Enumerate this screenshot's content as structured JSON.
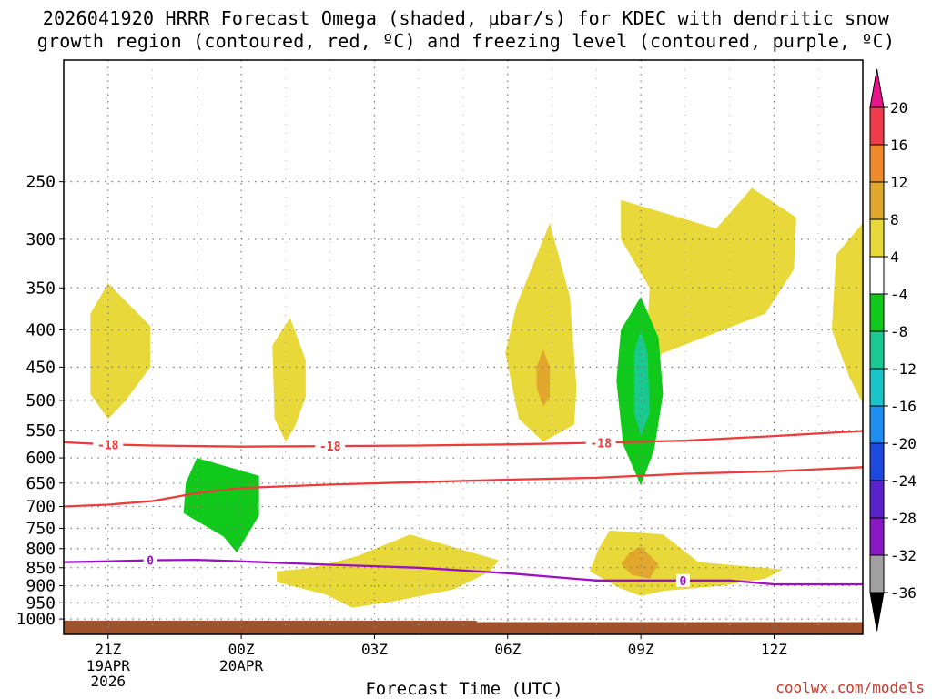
{
  "chart_data": {
    "type": "contour-timeheight",
    "title_line1": "2026041920 HRRR Forecast Omega (shaded, μbar/s) for KDEC with dendritic snow",
    "title_line2": "growth region (contoured, red, ºC) and freezing level (contoured, purple, ºC)",
    "xlabel": "Forecast Time (UTC)",
    "credit": "coolwx.com/models",
    "x_ticks": [
      {
        "hour": 1,
        "label": "21Z",
        "sub": [
          "19APR",
          "2026"
        ]
      },
      {
        "hour": 4,
        "label": "00Z",
        "sub": [
          "20APR"
        ]
      },
      {
        "hour": 7,
        "label": "03Z",
        "sub": []
      },
      {
        "hour": 10,
        "label": "06Z",
        "sub": []
      },
      {
        "hour": 13,
        "label": "09Z",
        "sub": []
      },
      {
        "hour": 16,
        "label": "12Z",
        "sub": []
      }
    ],
    "xlim": [
      0,
      18
    ],
    "y_ticks": [
      250,
      300,
      350,
      400,
      450,
      500,
      550,
      600,
      650,
      700,
      750,
      800,
      850,
      900,
      950,
      1000
    ],
    "ylim": [
      1050,
      170
    ],
    "colorbar": {
      "labels": [
        "20",
        "16",
        "12",
        "8",
        "4",
        "-4",
        "-8",
        "-12",
        "-16",
        "-20",
        "-24",
        "-28",
        "-32",
        "-36"
      ],
      "colors": [
        "#f03c4a",
        "#ee8a2c",
        "#e2a82e",
        "#e8d83a",
        "#ffffff",
        "#11c91a",
        "#19c98f",
        "#19c5c8",
        "#1e8ff0",
        "#1e49e0",
        "#5a22cc",
        "#8a16c4",
        "#a0a0a0"
      ],
      "top_arrow": "#e6158a",
      "bottom_arrow": "#000000"
    },
    "shading": [
      {
        "color": "#e8d83a",
        "pts": [
          [
            1,
            345
          ],
          [
            1.95,
            395
          ],
          [
            1.95,
            450
          ],
          [
            1.4,
            500
          ],
          [
            1,
            530
          ],
          [
            0.6,
            490
          ],
          [
            0.6,
            380
          ]
        ]
      },
      {
        "color": "#e8d83a",
        "pts": [
          [
            5.1,
            385
          ],
          [
            5.45,
            440
          ],
          [
            5.45,
            495
          ],
          [
            5.2,
            545
          ],
          [
            5.0,
            570
          ],
          [
            4.75,
            530
          ],
          [
            4.7,
            420
          ]
        ]
      },
      {
        "color": "#e8d83a",
        "pts": [
          [
            10.95,
            285
          ],
          [
            11.4,
            360
          ],
          [
            11.55,
            480
          ],
          [
            11.5,
            540
          ],
          [
            10.8,
            570
          ],
          [
            10.25,
            530
          ],
          [
            9.95,
            430
          ],
          [
            10.2,
            370
          ]
        ]
      },
      {
        "color": "#e2a82e",
        "pts": [
          [
            10.8,
            425
          ],
          [
            10.95,
            450
          ],
          [
            10.95,
            495
          ],
          [
            10.8,
            510
          ],
          [
            10.65,
            480
          ],
          [
            10.65,
            450
          ]
        ]
      },
      {
        "color": "#e8d83a",
        "pts": [
          [
            12.55,
            265
          ],
          [
            14.7,
            290
          ],
          [
            15.5,
            255
          ],
          [
            16.5,
            280
          ],
          [
            16.45,
            330
          ],
          [
            15.8,
            380
          ],
          [
            13.1,
            440
          ],
          [
            13.2,
            350
          ],
          [
            12.55,
            300
          ]
        ]
      },
      {
        "color": "#e8d83a",
        "pts": [
          [
            18,
            285
          ],
          [
            17.4,
            315
          ],
          [
            17.3,
            400
          ],
          [
            17.7,
            465
          ],
          [
            18,
            505
          ]
        ]
      },
      {
        "color": "#11c91a",
        "pts": [
          [
            13,
            360
          ],
          [
            13.4,
            410
          ],
          [
            13.5,
            490
          ],
          [
            13.3,
            585
          ],
          [
            13,
            655
          ],
          [
            12.6,
            575
          ],
          [
            12.45,
            470
          ],
          [
            12.55,
            400
          ]
        ]
      },
      {
        "color": "#19c98f",
        "pts": [
          [
            13,
            400
          ],
          [
            13.15,
            430
          ],
          [
            13.2,
            520
          ],
          [
            13,
            560
          ],
          [
            12.85,
            520
          ],
          [
            12.85,
            430
          ]
        ]
      },
      {
        "color": "#11c91a",
        "pts": [
          [
            3,
            600
          ],
          [
            4.4,
            635
          ],
          [
            4.4,
            720
          ],
          [
            3.9,
            810
          ],
          [
            3.6,
            770
          ],
          [
            2.7,
            715
          ],
          [
            2.75,
            650
          ]
        ]
      },
      {
        "color": "#e8d83a",
        "pts": [
          [
            7.8,
            765
          ],
          [
            9.2,
            810
          ],
          [
            9.8,
            830
          ],
          [
            9.6,
            860
          ],
          [
            8.8,
            910
          ],
          [
            7.45,
            945
          ],
          [
            6.5,
            965
          ],
          [
            5.9,
            925
          ],
          [
            4.8,
            890
          ],
          [
            4.8,
            860
          ],
          [
            5.6,
            850
          ],
          [
            6.6,
            820
          ]
        ]
      },
      {
        "color": "#e8d83a",
        "pts": [
          [
            12.3,
            755
          ],
          [
            13.5,
            765
          ],
          [
            14.3,
            835
          ],
          [
            16.2,
            855
          ],
          [
            15.8,
            880
          ],
          [
            14.8,
            900
          ],
          [
            13.5,
            915
          ],
          [
            13,
            930
          ],
          [
            12.5,
            905
          ],
          [
            11.85,
            860
          ],
          [
            12.05,
            800
          ]
        ]
      },
      {
        "color": "#e2a82e",
        "pts": [
          [
            13,
            795
          ],
          [
            13.4,
            840
          ],
          [
            13.2,
            880
          ],
          [
            12.8,
            870
          ],
          [
            12.55,
            840
          ],
          [
            12.75,
            810
          ]
        ]
      }
    ],
    "contours": [
      {
        "name": "dgz-minus18",
        "color": "#ee3b3b",
        "label": "-18",
        "label_at": [
          1.0,
          6.0,
          12.1
        ],
        "pts": [
          [
            0,
            571
          ],
          [
            1,
            575
          ],
          [
            2,
            577
          ],
          [
            4,
            579
          ],
          [
            6,
            578
          ],
          [
            8,
            577
          ],
          [
            10,
            575
          ],
          [
            12,
            572
          ],
          [
            14,
            568
          ],
          [
            16,
            560
          ],
          [
            18,
            551
          ]
        ]
      },
      {
        "name": "dgz-minus12",
        "color": "#ee3b3b",
        "label": "",
        "pts": [
          [
            0,
            700
          ],
          [
            1,
            696
          ],
          [
            2,
            688
          ],
          [
            3,
            671
          ],
          [
            4,
            660
          ],
          [
            6,
            653
          ],
          [
            8,
            648
          ],
          [
            10,
            643
          ],
          [
            12,
            639
          ],
          [
            14,
            631
          ],
          [
            16,
            626
          ],
          [
            18,
            618
          ]
        ]
      },
      {
        "name": "freezing-level",
        "color": "#9b10c4",
        "label": "0",
        "label_at": [
          1.95,
          13.95
        ],
        "pts": [
          [
            0,
            835
          ],
          [
            1,
            833
          ],
          [
            2,
            830
          ],
          [
            3,
            829
          ],
          [
            4,
            833
          ],
          [
            6,
            842
          ],
          [
            8,
            850
          ],
          [
            10,
            865
          ],
          [
            12,
            885
          ],
          [
            13,
            885
          ],
          [
            15,
            885
          ],
          [
            16,
            896
          ],
          [
            18,
            896
          ]
        ]
      }
    ],
    "terrain": {
      "color": "#a0522d",
      "top_before": 1005,
      "top_after": 1010,
      "step_hour": 9.3
    }
  }
}
